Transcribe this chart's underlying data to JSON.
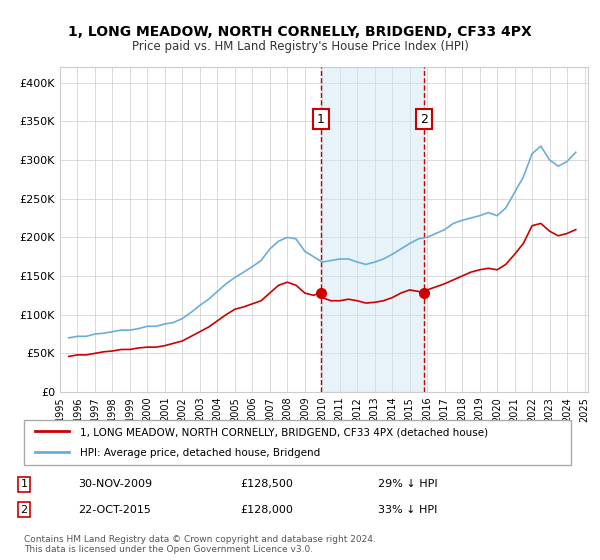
{
  "title": "1, LONG MEADOW, NORTH CORNELLY, BRIDGEND, CF33 4PX",
  "subtitle": "Price paid vs. HM Land Registry's House Price Index (HPI)",
  "legend_entry1": "1, LONG MEADOW, NORTH CORNELLY, BRIDGEND, CF33 4PX (detached house)",
  "legend_entry2": "HPI: Average price, detached house, Bridgend",
  "transaction1_date": "30-NOV-2009",
  "transaction1_price": "£128,500",
  "transaction1_info": "29% ↓ HPI",
  "transaction2_date": "22-OCT-2015",
  "transaction2_price": "£128,000",
  "transaction2_info": "33% ↓ HPI",
  "footer1": "Contains HM Land Registry data © Crown copyright and database right 2024.",
  "footer2": "This data is licensed under the Open Government Licence v3.0.",
  "hpi_color": "#6aaed6",
  "price_color": "#cc0000",
  "vline_color": "#cc0000",
  "shade_color": "#d0e8f5",
  "point_color": "#cc0000",
  "background_color": "#ffffff",
  "grid_color": "#cccccc",
  "ylim": [
    0,
    420000
  ],
  "yticks": [
    0,
    50000,
    100000,
    150000,
    200000,
    250000,
    300000,
    350000,
    400000
  ],
  "ytick_labels": [
    "£0",
    "£50K",
    "£100K",
    "£150K",
    "£200K",
    "£250K",
    "£300K",
    "£350K",
    "£400K"
  ],
  "transaction1_year": 2009.92,
  "transaction2_year": 2015.81,
  "hpi_x": [
    1995.5,
    1996.0,
    1996.5,
    1997.0,
    1997.5,
    1998.0,
    1998.5,
    1999.0,
    1999.5,
    2000.0,
    2000.5,
    2001.0,
    2001.5,
    2002.0,
    2002.5,
    2003.0,
    2003.5,
    2004.0,
    2004.5,
    2005.0,
    2005.5,
    2006.0,
    2006.5,
    2007.0,
    2007.5,
    2008.0,
    2008.5,
    2009.0,
    2009.5,
    2010.0,
    2010.5,
    2011.0,
    2011.5,
    2012.0,
    2012.5,
    2013.0,
    2013.5,
    2014.0,
    2014.5,
    2015.0,
    2015.5,
    2016.0,
    2016.5,
    2017.0,
    2017.5,
    2018.0,
    2018.5,
    2019.0,
    2019.5,
    2020.0,
    2020.5,
    2021.0,
    2021.5,
    2022.0,
    2022.5,
    2023.0,
    2023.5,
    2024.0,
    2024.5
  ],
  "hpi_y": [
    70000,
    72000,
    72000,
    75000,
    76000,
    78000,
    80000,
    80000,
    82000,
    85000,
    85000,
    88000,
    90000,
    95000,
    103000,
    112000,
    120000,
    130000,
    140000,
    148000,
    155000,
    162000,
    170000,
    185000,
    195000,
    200000,
    198000,
    182000,
    175000,
    168000,
    170000,
    172000,
    172000,
    168000,
    165000,
    168000,
    172000,
    178000,
    185000,
    192000,
    198000,
    200000,
    205000,
    210000,
    218000,
    222000,
    225000,
    228000,
    232000,
    228000,
    238000,
    258000,
    278000,
    308000,
    318000,
    300000,
    292000,
    298000,
    310000
  ],
  "price_x": [
    1995.5,
    1996.0,
    1996.5,
    1997.0,
    1997.5,
    1998.0,
    1998.5,
    1999.0,
    1999.5,
    2000.0,
    2000.5,
    2001.0,
    2001.5,
    2002.0,
    2002.5,
    2003.0,
    2003.5,
    2004.0,
    2004.5,
    2005.0,
    2005.5,
    2006.0,
    2006.5,
    2007.0,
    2007.5,
    2008.0,
    2008.5,
    2009.0,
    2009.5,
    2009.92,
    2010.0,
    2010.5,
    2011.0,
    2011.5,
    2012.0,
    2012.5,
    2013.0,
    2013.5,
    2014.0,
    2014.5,
    2015.0,
    2015.5,
    2015.81,
    2016.0,
    2016.5,
    2017.0,
    2017.5,
    2018.0,
    2018.5,
    2019.0,
    2019.5,
    2020.0,
    2020.5,
    2021.0,
    2021.5,
    2022.0,
    2022.5,
    2023.0,
    2023.5,
    2024.0,
    2024.5
  ],
  "price_y": [
    46000,
    48000,
    48000,
    50000,
    52000,
    53000,
    55000,
    55000,
    57000,
    58000,
    58000,
    60000,
    63000,
    66000,
    72000,
    78000,
    84000,
    92000,
    100000,
    107000,
    110000,
    114000,
    118000,
    128000,
    138000,
    142000,
    138000,
    128000,
    125000,
    128500,
    122000,
    118000,
    118000,
    120000,
    118000,
    115000,
    116000,
    118000,
    122000,
    128000,
    132000,
    130000,
    128000,
    132000,
    136000,
    140000,
    145000,
    150000,
    155000,
    158000,
    160000,
    158000,
    165000,
    178000,
    192000,
    215000,
    218000,
    208000,
    202000,
    205000,
    210000
  ]
}
